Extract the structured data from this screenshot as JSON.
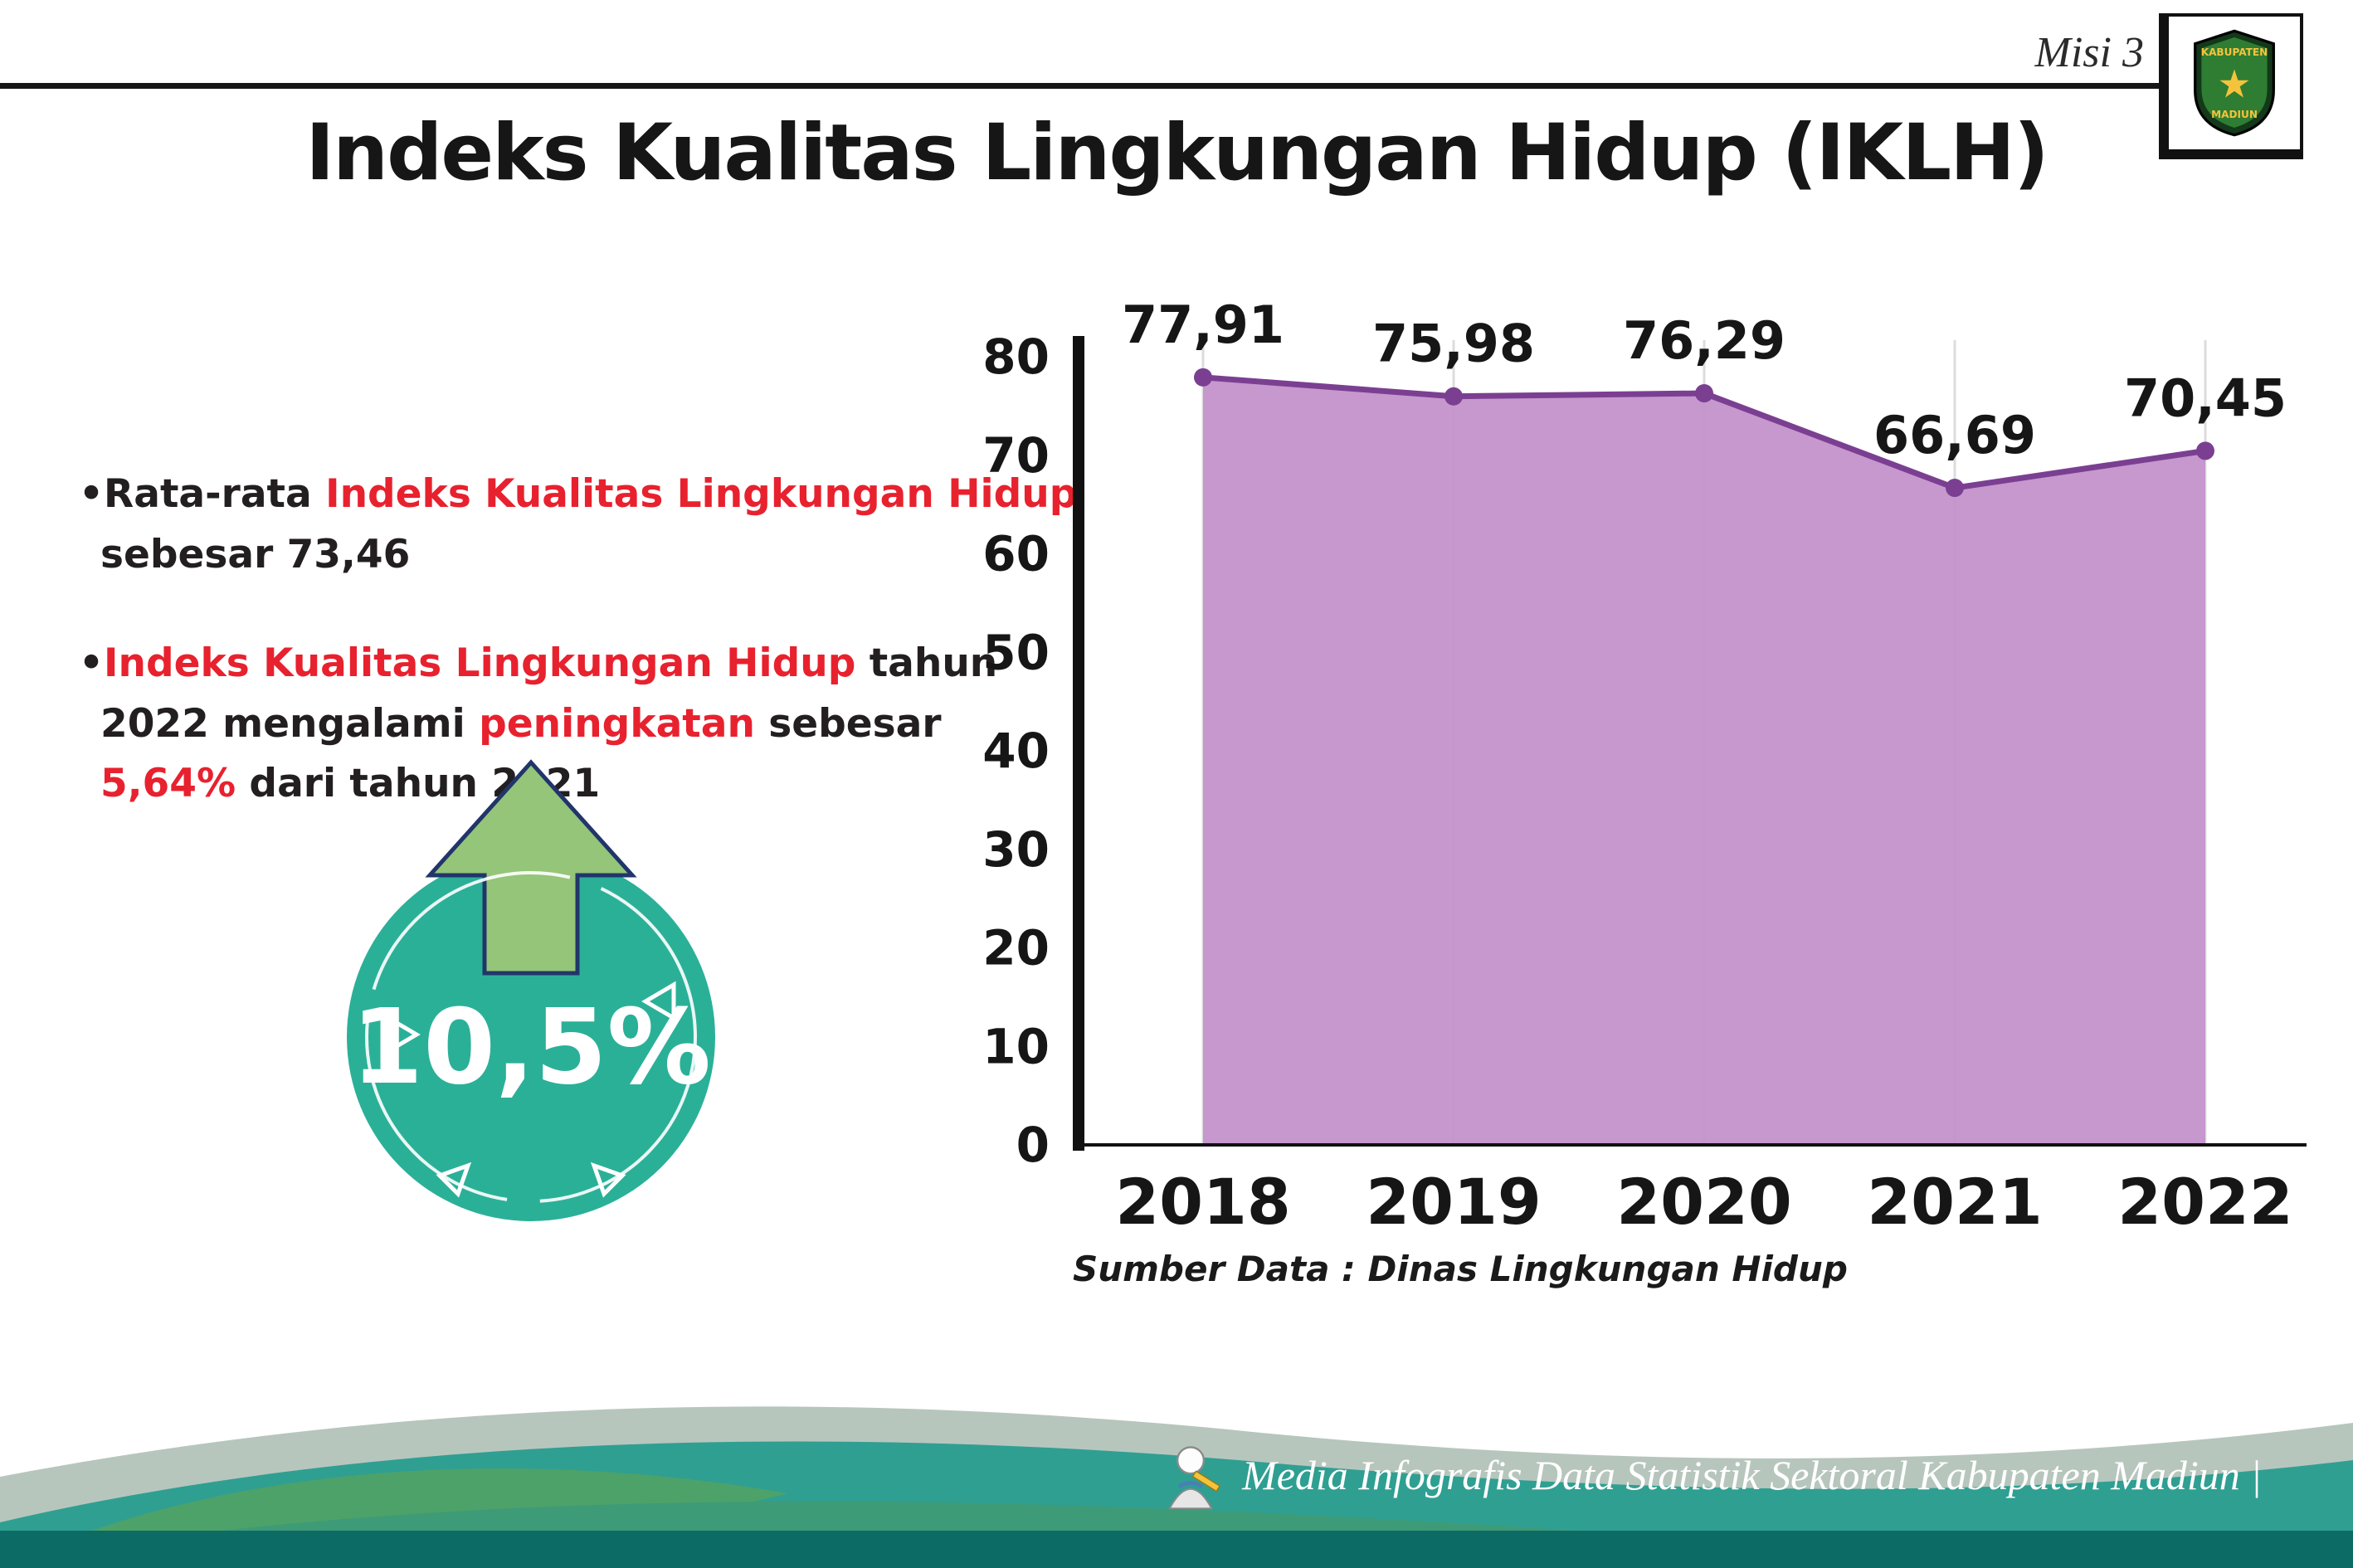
{
  "header": {
    "misi": "Misi 3",
    "logo": {
      "top": "KABUPATEN",
      "bottom": "MADIUN"
    }
  },
  "title": "Indeks Kualitas Lingkungan Hidup (IKLH)",
  "bullets": [
    {
      "marker": "•",
      "segments": [
        {
          "t": "Rata-rata ",
          "red": false
        },
        {
          "t": "Indeks Kualitas Lingkungan Hidup",
          "red": true
        },
        {
          "t": " sebesar 73,46",
          "red": false
        }
      ]
    },
    {
      "marker": "•",
      "segments": [
        {
          "t": "Indeks Kualitas Lingkungan Hidup",
          "red": true
        },
        {
          "t": " tahun 2022 mengalami ",
          "red": false
        },
        {
          "t": "peningkatan",
          "red": true
        },
        {
          "t": " sebesar ",
          "red": false
        },
        {
          "t": "5,64%",
          "red": true
        },
        {
          "t": " dari tahun 2021",
          "red": false
        }
      ]
    }
  ],
  "badge": {
    "value": "10,5%",
    "circle_color": "#2bb098",
    "arrow_color": "#94c579"
  },
  "chart_data": {
    "type": "area",
    "categories": [
      "2018",
      "2019",
      "2020",
      "2021",
      "2022"
    ],
    "values": [
      77.91,
      75.98,
      76.29,
      66.69,
      70.45
    ],
    "value_labels": [
      "77,91",
      "75,98",
      "76,29",
      "66,69",
      "70,45"
    ],
    "ylim": [
      0,
      80
    ],
    "ytick_step": 10,
    "grid": "vertical-light",
    "legend": "none",
    "title": "",
    "xlabel": "",
    "ylabel": "",
    "source": "Sumber Data : Dinas Lingkungan Hidup",
    "colors": {
      "area": "#c18fca",
      "line": "#7b3f92",
      "point": "#7b3f92",
      "axis": "#111111"
    }
  },
  "footer": {
    "text": "Media Infografis Data Statistik Sektoral Kabupaten Madiun |"
  },
  "palette": {
    "highlight_red": "#e8212e",
    "teal_wave": "#2f9f92",
    "sage_wave": "#b7c6bd",
    "green_wave": "#3e9b77",
    "dark_bar": "#0d6b66"
  }
}
